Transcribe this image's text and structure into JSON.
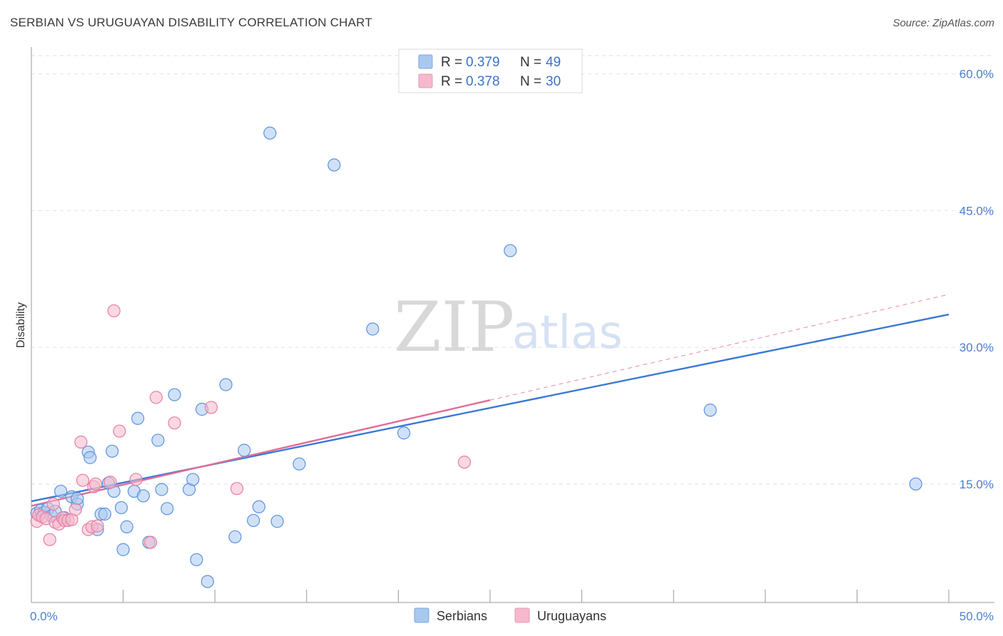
{
  "title": "SERBIAN VS URUGUAYAN DISABILITY CORRELATION CHART",
  "source": "Source: ZipAtlas.com",
  "watermark": {
    "zip": "ZIP",
    "atlas": "atlas"
  },
  "legend": {
    "r_label": "R =",
    "n_label": "N =",
    "rows": [
      {
        "r": "0.379",
        "n": "49",
        "color": "#a9c8f0"
      },
      {
        "r": "0.378",
        "n": "30",
        "color": "#f6b8cc"
      }
    ]
  },
  "bottom_legend": [
    "Serbians",
    "Uruguayans"
  ],
  "chart_data": {
    "type": "scatter",
    "title": "SERBIAN VS URUGUAYAN DISABILITY CORRELATION CHART",
    "ylabel": "Disability",
    "xlabel": "",
    "xlim": [
      0,
      50
    ],
    "ylim": [
      2,
      62
    ],
    "x_tick_labels": [
      "0.0%",
      "50.0%"
    ],
    "y_ticks": [
      15,
      30,
      45,
      60
    ],
    "y_tick_labels": [
      "15.0%",
      "30.0%",
      "45.0%",
      "60.0%"
    ],
    "grid": "horizontal dashed",
    "legend_position": "top-center",
    "series": [
      {
        "name": "Serbians",
        "color": "#5b93de",
        "fill": "#a9c8f0",
        "points": [
          [
            0.3,
            11.8
          ],
          [
            0.5,
            12.1
          ],
          [
            0.7,
            11.9
          ],
          [
            0.9,
            12.3
          ],
          [
            1.1,
            11.5
          ],
          [
            1.3,
            12.0
          ],
          [
            1.6,
            14.2
          ],
          [
            1.8,
            11.3
          ],
          [
            2.2,
            13.6
          ],
          [
            2.5,
            12.8
          ],
          [
            2.5,
            13.4
          ],
          [
            3.1,
            18.5
          ],
          [
            3.2,
            17.9
          ],
          [
            3.6,
            10.0
          ],
          [
            3.8,
            11.7
          ],
          [
            4.0,
            11.7
          ],
          [
            4.2,
            15.1
          ],
          [
            4.4,
            18.6
          ],
          [
            4.5,
            14.2
          ],
          [
            4.9,
            12.4
          ],
          [
            5.0,
            7.8
          ],
          [
            5.2,
            10.3
          ],
          [
            5.6,
            14.2
          ],
          [
            5.8,
            22.2
          ],
          [
            6.1,
            13.7
          ],
          [
            6.4,
            8.6
          ],
          [
            6.9,
            19.8
          ],
          [
            7.1,
            14.4
          ],
          [
            7.4,
            12.3
          ],
          [
            7.8,
            24.8
          ],
          [
            8.6,
            14.4
          ],
          [
            8.8,
            15.5
          ],
          [
            9.0,
            6.7
          ],
          [
            9.3,
            23.2
          ],
          [
            9.6,
            4.3
          ],
          [
            10.6,
            25.9
          ],
          [
            11.1,
            9.2
          ],
          [
            11.6,
            18.7
          ],
          [
            12.1,
            11.0
          ],
          [
            12.4,
            12.5
          ],
          [
            13.0,
            53.5
          ],
          [
            13.4,
            10.9
          ],
          [
            14.6,
            17.2
          ],
          [
            16.5,
            50.0
          ],
          [
            18.6,
            32.0
          ],
          [
            20.3,
            20.6
          ],
          [
            26.1,
            40.6
          ],
          [
            37.0,
            23.1
          ],
          [
            48.2,
            15.0
          ]
        ]
      },
      {
        "name": "Uruguayans",
        "color": "#e87ea0",
        "fill": "#f6b8cc",
        "points": [
          [
            0.3,
            10.9
          ],
          [
            0.4,
            11.6
          ],
          [
            0.6,
            11.4
          ],
          [
            0.8,
            11.2
          ],
          [
            1.0,
            8.9
          ],
          [
            1.2,
            12.8
          ],
          [
            1.3,
            10.8
          ],
          [
            1.5,
            10.6
          ],
          [
            1.7,
            11.3
          ],
          [
            1.8,
            11.0
          ],
          [
            2.0,
            11.0
          ],
          [
            2.2,
            11.1
          ],
          [
            2.4,
            12.2
          ],
          [
            2.7,
            19.6
          ],
          [
            2.8,
            15.4
          ],
          [
            3.1,
            10.0
          ],
          [
            3.3,
            10.3
          ],
          [
            3.4,
            14.7
          ],
          [
            3.5,
            15.0
          ],
          [
            3.6,
            10.4
          ],
          [
            4.3,
            15.2
          ],
          [
            4.5,
            34.0
          ],
          [
            4.8,
            20.8
          ],
          [
            5.7,
            15.5
          ],
          [
            6.5,
            8.6
          ],
          [
            6.8,
            24.5
          ],
          [
            7.8,
            21.7
          ],
          [
            9.8,
            23.4
          ],
          [
            11.2,
            14.5
          ],
          [
            23.6,
            17.4
          ]
        ]
      }
    ],
    "trendlines": [
      {
        "series": "Serbians",
        "x": [
          0,
          50
        ],
        "y": [
          13.1,
          33.6
        ],
        "style": "solid"
      },
      {
        "series": "Uruguayans",
        "x": [
          0,
          25
        ],
        "y": [
          12.6,
          24.2
        ],
        "style": "solid"
      },
      {
        "series": "Uruguayans",
        "x": [
          25,
          50
        ],
        "y": [
          24.2,
          35.8
        ],
        "style": "dashed"
      }
    ]
  }
}
